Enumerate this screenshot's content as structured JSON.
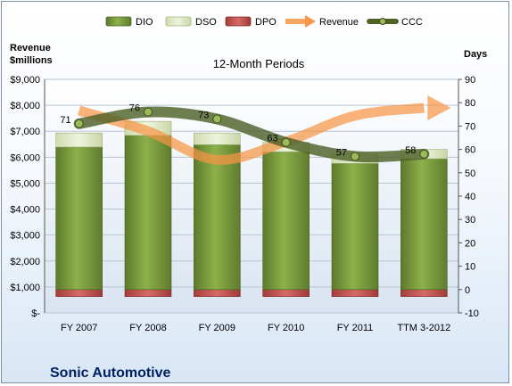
{
  "company": "Sonic Automotive",
  "chart_data": {
    "type": "bar",
    "title": "12-Month Periods",
    "categories": [
      "FY 2007",
      "FY 2008",
      "FY 2009",
      "FY 2010",
      "FY 2011",
      "TTM 3-2012"
    ],
    "left_axis": {
      "label_line1": "Revenue",
      "label_line2": "$millions",
      "ylim": [
        0,
        9000
      ],
      "ticks": [
        "$-",
        "$1,000",
        "$2,000",
        "$3,000",
        "$4,000",
        "$5,000",
        "$6,000",
        "$7,000",
        "$8,000",
        "$9,000"
      ]
    },
    "right_axis": {
      "label": "Days",
      "ylim": [
        -10,
        90
      ],
      "ticks": [
        "-10",
        "0",
        "10",
        "20",
        "30",
        "40",
        "50",
        "60",
        "70",
        "80",
        "90"
      ]
    },
    "legend_position": "top",
    "series": [
      {
        "name": "DIO",
        "type": "bar-stacked",
        "axis": "right",
        "color": "#77933c",
        "values": [
          61,
          66,
          62,
          59,
          54,
          56
        ]
      },
      {
        "name": "DSO",
        "type": "bar-stacked",
        "axis": "right",
        "color": "#d7e4bd",
        "values": [
          6,
          6,
          5,
          4,
          4,
          4
        ]
      },
      {
        "name": "DPO",
        "type": "bar-negative",
        "axis": "right",
        "color": "#c0504d",
        "values": [
          -3,
          -3,
          -3,
          -3,
          -3,
          -3
        ]
      },
      {
        "name": "Revenue",
        "type": "line-arrow",
        "axis": "left",
        "color": "#f79646",
        "values": [
          7800,
          7000,
          5900,
          6600,
          7600,
          7900
        ]
      },
      {
        "name": "CCC",
        "type": "line-markers",
        "axis": "right",
        "color": "#4f6228",
        "values": [
          71,
          76,
          73,
          63,
          57,
          58
        ],
        "labels": [
          "71",
          "76",
          "73",
          "63",
          "57",
          "58"
        ]
      }
    ]
  }
}
